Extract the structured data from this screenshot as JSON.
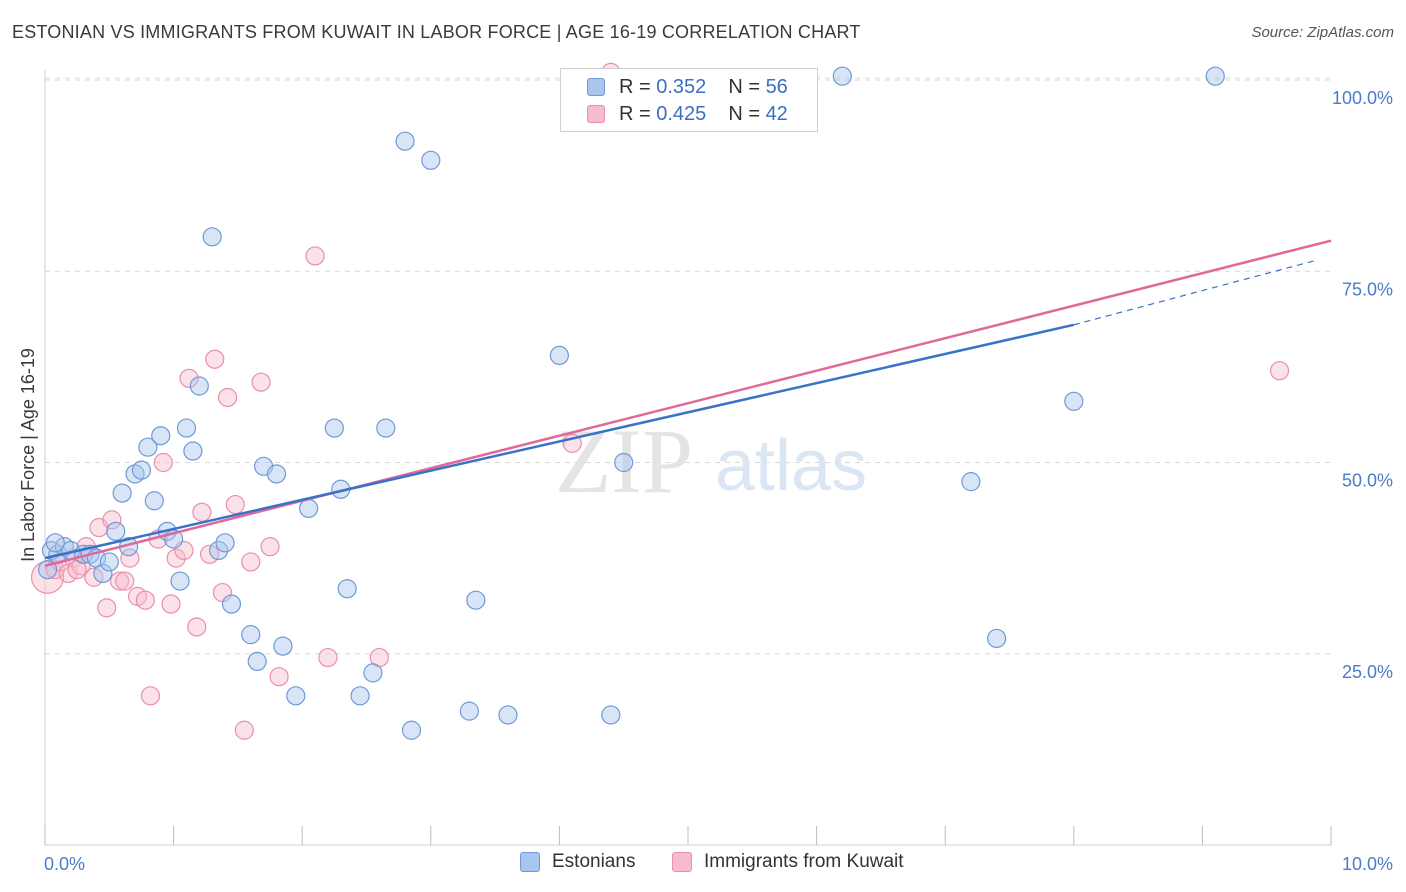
{
  "header": {
    "title": "ESTONIAN VS IMMIGRANTS FROM KUWAIT IN LABOR FORCE | AGE 16-19 CORRELATION CHART",
    "source": "Source: ZipAtlas.com"
  },
  "watermark": {
    "zip": "ZIP",
    "atlas": "atlas"
  },
  "legend": {
    "rows": [
      {
        "r_label": "R =",
        "r_value": "0.352",
        "n_label": "N =",
        "n_value": "56"
      },
      {
        "r_label": "R =",
        "r_value": "0.425",
        "n_label": "N =",
        "n_value": "42"
      }
    ]
  },
  "bottom_legend": {
    "series1": "Estonians",
    "series2": "Immigrants from Kuwait"
  },
  "colors": {
    "series1_fill": "#a9c6ee",
    "series1_stroke": "#6f9ad6",
    "series1_line": "#3a72c8",
    "series2_fill": "#f6bccd",
    "series2_stroke": "#e98fab",
    "series2_line": "#e0689a",
    "tick_text": "#4a7cc7",
    "grid": "#d9d9d9"
  },
  "chart_data": {
    "type": "scatter",
    "title": "ESTONIAN VS IMMIGRANTS FROM KUWAIT IN LABOR FORCE | AGE 16-19 CORRELATION CHART",
    "xlabel": "",
    "ylabel": "In Labor Force | Age 16-19",
    "xlim": [
      0,
      10
    ],
    "ylim": [
      0,
      102
    ],
    "x_ticks": [
      "0.0%",
      "10.0%"
    ],
    "y_ticks": [
      {
        "value": 25,
        "label": "25.0%"
      },
      {
        "value": 50,
        "label": "50.0%"
      },
      {
        "value": 75,
        "label": "75.0%"
      },
      {
        "value": 100,
        "label": "100.0%"
      }
    ],
    "grid": true,
    "legend_position": "top-center",
    "series": [
      {
        "name": "Estonians",
        "r": 0.352,
        "n": 56,
        "trend": {
          "x0": 0.0,
          "y0": 37.5,
          "x1": 8.0,
          "y1": 68.0,
          "dash_x1": 9.9,
          "dash_y1": 76.5
        },
        "points": [
          [
            0.05,
            38.5
          ],
          [
            0.1,
            38.0
          ],
          [
            0.15,
            39.0
          ],
          [
            0.2,
            38.5
          ],
          [
            0.3,
            38.0
          ],
          [
            0.35,
            38.0
          ],
          [
            0.4,
            37.5
          ],
          [
            0.45,
            35.5
          ],
          [
            0.5,
            37.0
          ],
          [
            0.55,
            41.0
          ],
          [
            0.6,
            46.0
          ],
          [
            0.65,
            39.0
          ],
          [
            0.7,
            48.5
          ],
          [
            0.75,
            49.0
          ],
          [
            0.8,
            52.0
          ],
          [
            0.85,
            45.0
          ],
          [
            0.9,
            53.5
          ],
          [
            0.95,
            41.0
          ],
          [
            1.0,
            40.0
          ],
          [
            1.05,
            34.5
          ],
          [
            1.1,
            54.5
          ],
          [
            1.15,
            51.5
          ],
          [
            1.2,
            60.0
          ],
          [
            1.3,
            79.5
          ],
          [
            1.35,
            38.5
          ],
          [
            1.4,
            39.5
          ],
          [
            1.45,
            31.5
          ],
          [
            1.6,
            27.5
          ],
          [
            1.65,
            24.0
          ],
          [
            1.7,
            49.5
          ],
          [
            1.8,
            48.5
          ],
          [
            1.85,
            26.0
          ],
          [
            1.95,
            19.5
          ],
          [
            2.05,
            44.0
          ],
          [
            2.25,
            54.5
          ],
          [
            2.3,
            46.5
          ],
          [
            2.35,
            33.5
          ],
          [
            2.45,
            19.5
          ],
          [
            2.55,
            22.5
          ],
          [
            2.65,
            54.5
          ],
          [
            2.8,
            92.0
          ],
          [
            2.85,
            15.0
          ],
          [
            3.0,
            89.5
          ],
          [
            3.3,
            17.5
          ],
          [
            3.35,
            32.0
          ],
          [
            3.6,
            17.0
          ],
          [
            4.0,
            64.0
          ],
          [
            4.4,
            17.0
          ],
          [
            4.5,
            50.0
          ],
          [
            6.2,
            100.5
          ],
          [
            7.2,
            47.5
          ],
          [
            7.4,
            27.0
          ],
          [
            8.0,
            58.0
          ],
          [
            9.1,
            100.5
          ],
          [
            0.02,
            36.0
          ],
          [
            0.08,
            39.5
          ]
        ]
      },
      {
        "name": "Immigrants from Kuwait",
        "r": 0.425,
        "n": 42,
        "trend": {
          "x0": 0.0,
          "y0": 36.5,
          "x1": 10.0,
          "y1": 79.0
        },
        "points": [
          [
            0.02,
            35.0
          ],
          [
            0.08,
            36.0
          ],
          [
            0.12,
            37.0
          ],
          [
            0.18,
            35.5
          ],
          [
            0.22,
            37.5
          ],
          [
            0.28,
            36.5
          ],
          [
            0.32,
            39.0
          ],
          [
            0.38,
            35.0
          ],
          [
            0.42,
            41.5
          ],
          [
            0.48,
            31.0
          ],
          [
            0.52,
            42.5
          ],
          [
            0.58,
            34.5
          ],
          [
            0.62,
            34.5
          ],
          [
            0.66,
            37.5
          ],
          [
            0.72,
            32.5
          ],
          [
            0.78,
            32.0
          ],
          [
            0.82,
            19.5
          ],
          [
            0.88,
            40.0
          ],
          [
            0.92,
            50.0
          ],
          [
            0.98,
            31.5
          ],
          [
            1.02,
            37.5
          ],
          [
            1.08,
            38.5
          ],
          [
            1.12,
            61.0
          ],
          [
            1.18,
            28.5
          ],
          [
            1.22,
            43.5
          ],
          [
            1.28,
            38.0
          ],
          [
            1.32,
            63.5
          ],
          [
            1.38,
            33.0
          ],
          [
            1.42,
            58.5
          ],
          [
            1.48,
            44.5
          ],
          [
            1.55,
            15.0
          ],
          [
            1.6,
            37.0
          ],
          [
            1.68,
            60.5
          ],
          [
            1.75,
            39.0
          ],
          [
            1.82,
            22.0
          ],
          [
            2.1,
            77.0
          ],
          [
            2.2,
            24.5
          ],
          [
            2.6,
            24.5
          ],
          [
            4.1,
            52.5
          ],
          [
            4.4,
            101.0
          ],
          [
            9.6,
            62.0
          ],
          [
            0.25,
            36.0
          ]
        ]
      }
    ]
  }
}
